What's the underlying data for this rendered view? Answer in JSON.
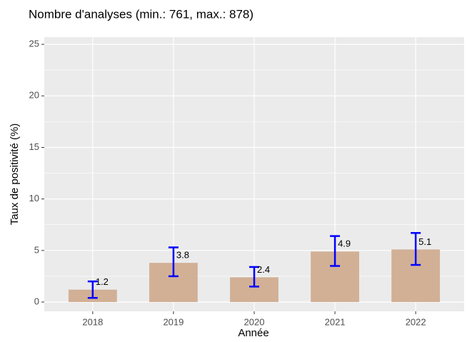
{
  "chart_data": {
    "type": "bar",
    "title": "Nombre d'analyses (min.: 761, max.: 878)",
    "x_label": "Année",
    "y_label": "Taux de positivité (%)",
    "categories": [
      "2018",
      "2019",
      "2020",
      "2021",
      "2022"
    ],
    "values": [
      1.2,
      3.8,
      2.4,
      4.9,
      5.1
    ],
    "lower": [
      0.4,
      2.5,
      1.5,
      3.5,
      3.6
    ],
    "upper": [
      2.0,
      5.3,
      3.4,
      6.4,
      6.7
    ],
    "color": "#d2b096",
    "error_color": "#0000ff",
    "ylim": [
      -0.9,
      25.7
    ],
    "yticks": [
      0,
      5,
      10,
      15,
      20,
      25
    ],
    "grid": true,
    "minor_grid": true
  }
}
